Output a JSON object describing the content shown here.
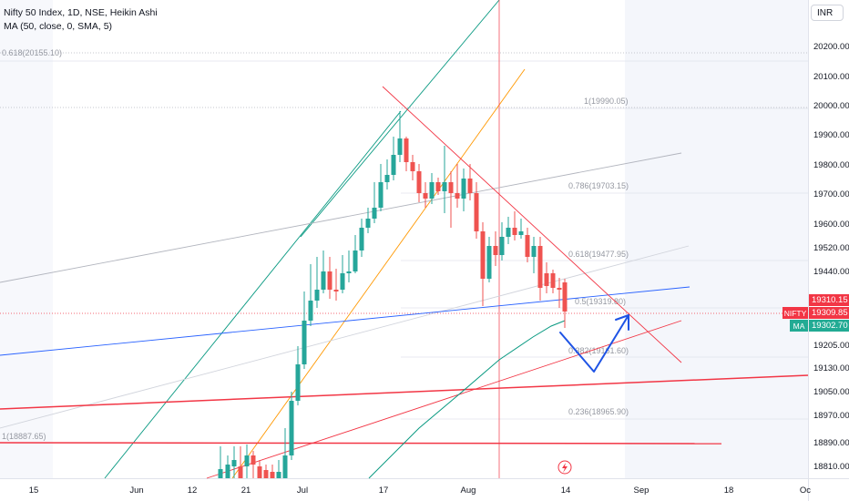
{
  "header": {
    "symbol_line": "Nifty 50 Index, 1D, NSE, Heikin Ashi",
    "indicator_line": "MA (50, close, 0, SMA, 5)"
  },
  "currency_button": "INR",
  "price_axis": {
    "ticks": [
      "20200.00",
      "20100.00",
      "20000.00",
      "19900.00",
      "19800.00",
      "19700.00",
      "19600.00",
      "19520.00",
      "19440.00",
      "19205.00",
      "19130.00",
      "19050.00",
      "18970.00",
      "18890.00",
      "18810.00"
    ]
  },
  "time_axis": {
    "ticks": [
      "15",
      "Jun",
      "12",
      "21",
      "Jul",
      "17",
      "Aug",
      "14",
      "Sep",
      "18",
      "Oc"
    ]
  },
  "price_tags": {
    "last_price": "19310.15",
    "symbol_label": "NIFTY",
    "symbol_price": "19309.85",
    "ma_label": "MA",
    "ma_price": "19302.70"
  },
  "fib_labels": [
    "0.618(20155.10)",
    "1(19990.05)",
    "0.786(19703.15)",
    "0.618(19477.95)",
    "0.5(19319.80)",
    "0.382(19161.60)",
    "0.236(18965.90)",
    "1(18887.65)"
  ],
  "colors": {
    "bull": "#26a69a",
    "bear": "#ef5350",
    "tag_red": "#f23645",
    "tag_teal": "#22ab94",
    "trend_green": "#089981",
    "trend_orange": "#ff9800",
    "trend_blue": "#2962ff",
    "trend_red": "#f23645",
    "trend_grey": "#b2b5be",
    "arrow_blue": "#1e53e5"
  },
  "event_icon": "lightning-icon"
}
